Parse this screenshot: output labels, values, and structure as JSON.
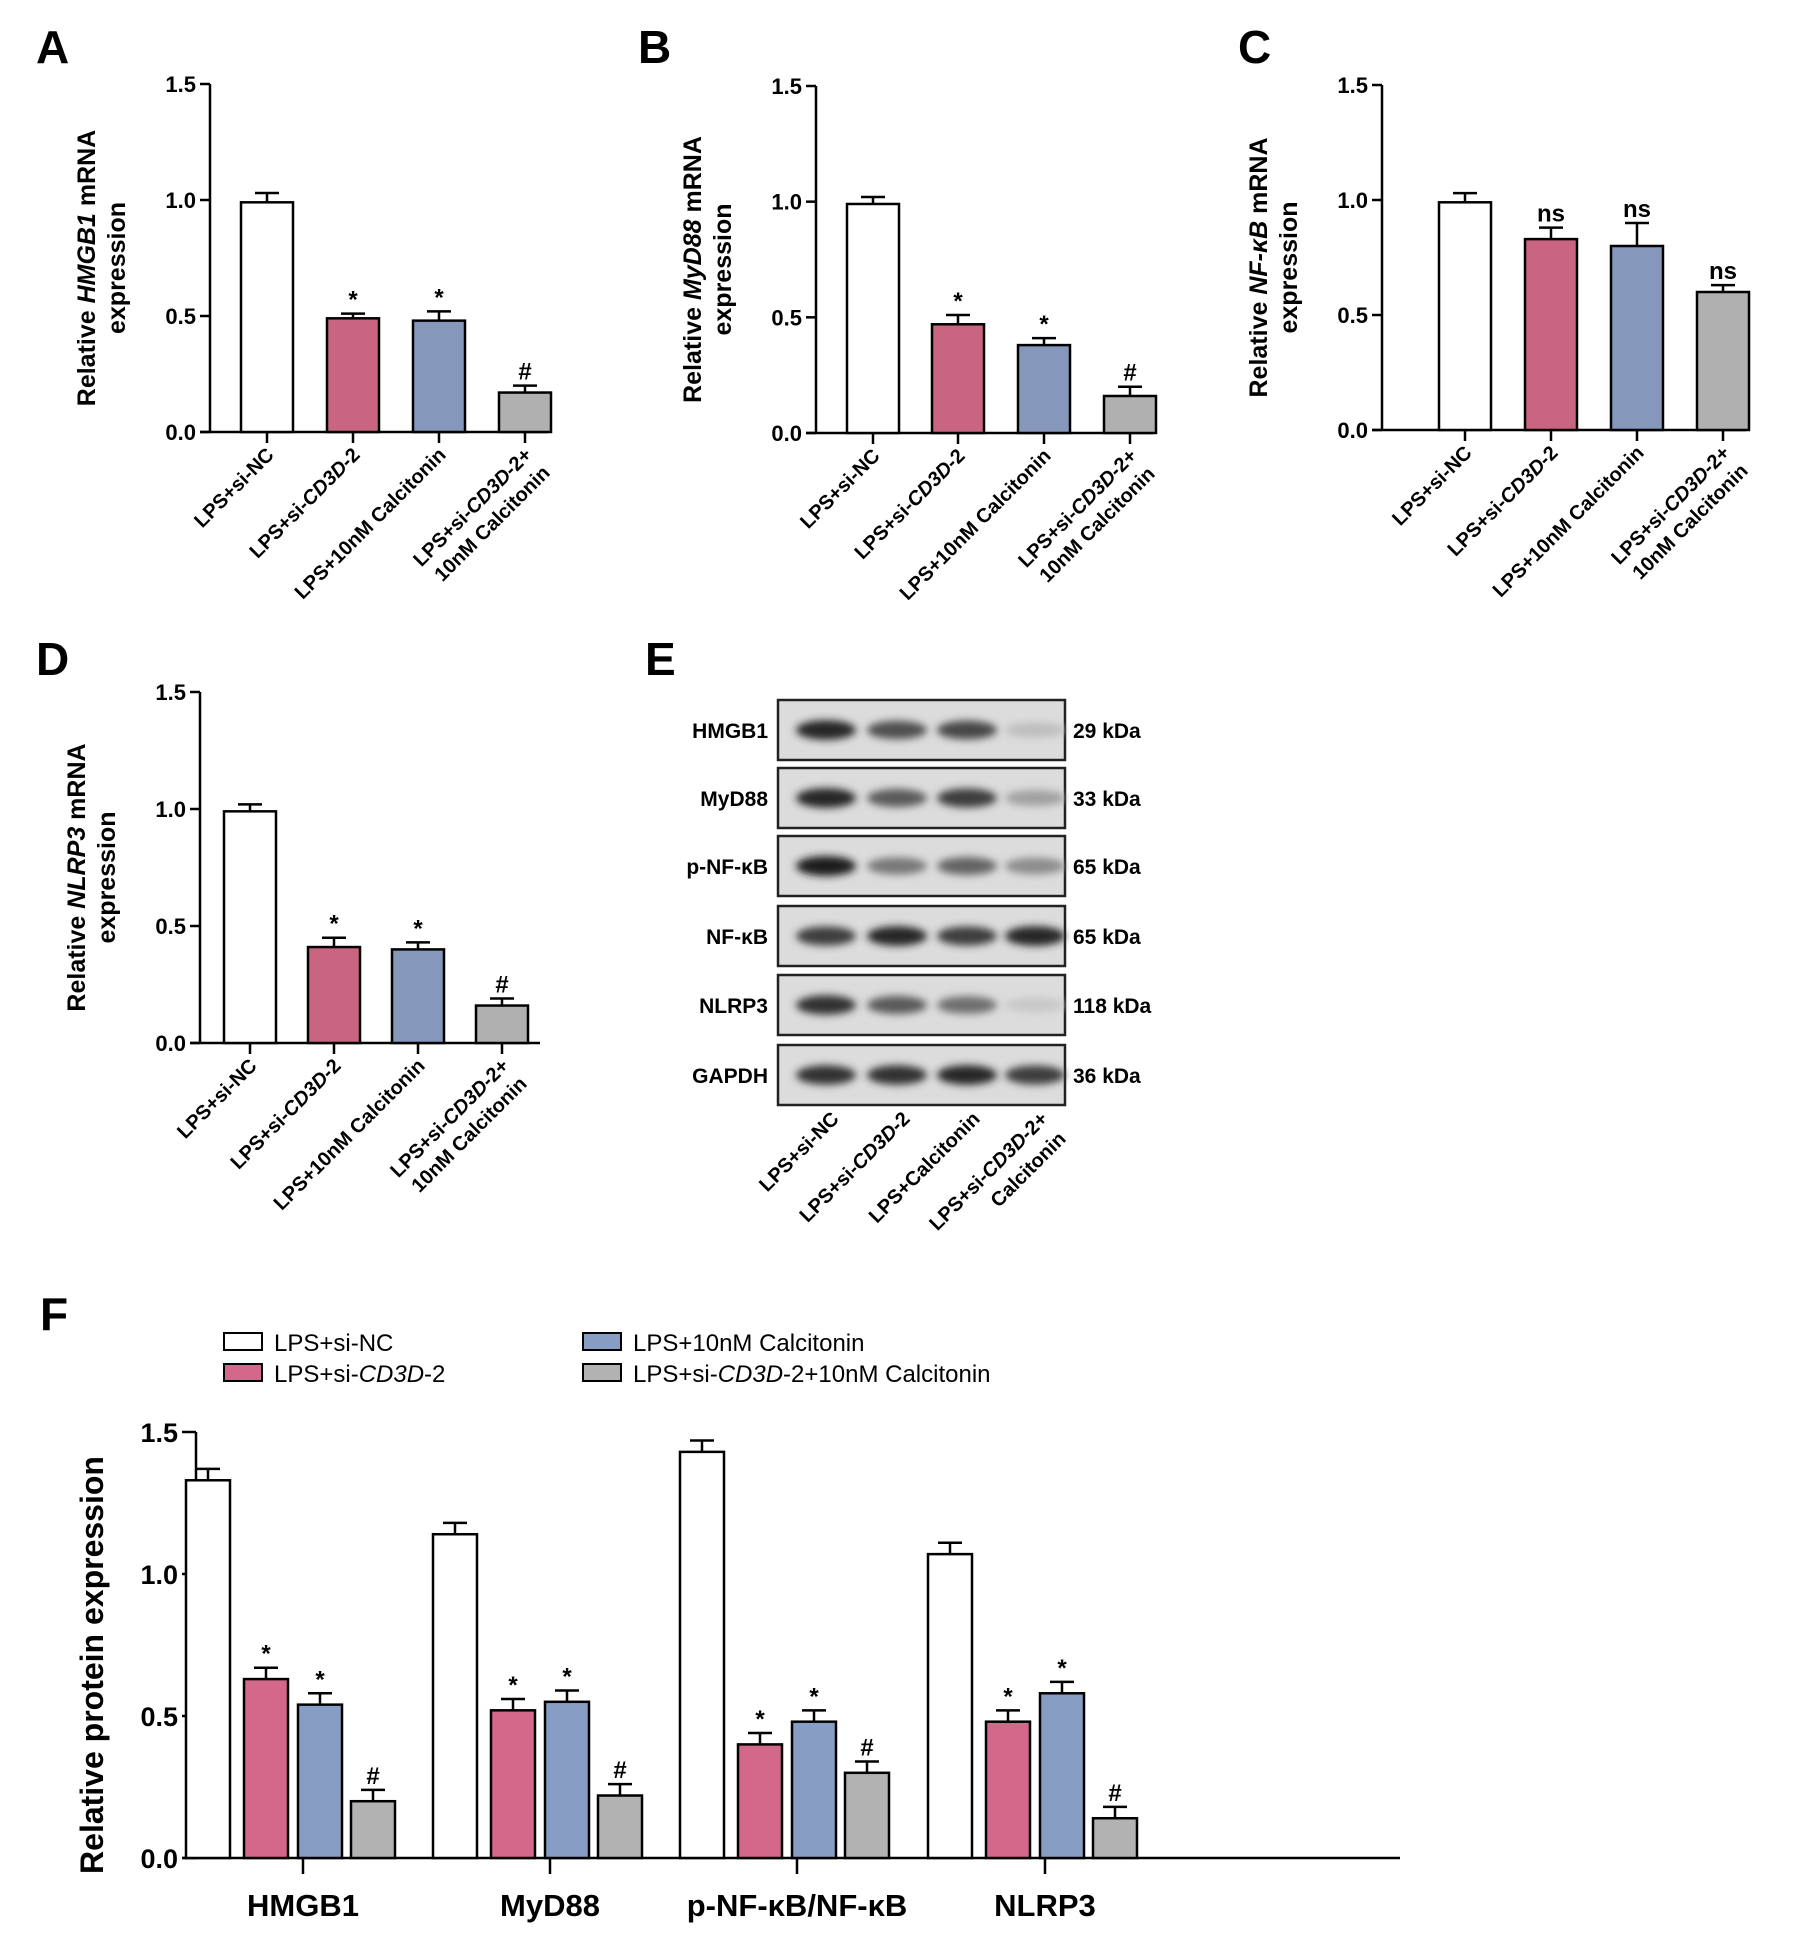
{
  "colors": {
    "LPS+si-NC": "#ffffff",
    "LPS+si-CD3D-2": "#c96580",
    "LPS+10nM Calcitonin": "#8598bb",
    "LPS+si-CD3D-2+10nM Calcitonin": "#b0b0b0"
  },
  "groups": [
    "LPS+si-NC",
    "LPS+si-CD3D-2",
    "LPS+10nM Calcitonin",
    "LPS+si-CD3D-2+10nM Calcitonin"
  ],
  "chart_data": [
    {
      "panel": "A",
      "type": "bar",
      "ylabel": "Relative HMGB1 mRNA expression",
      "ylabel_parts": [
        {
          "t": "Relative ",
          "i": false
        },
        {
          "t": "HMGB1",
          "i": true
        },
        {
          "t": " mRNA",
          "i": false
        }
      ],
      "ylabel_line2": "expression",
      "ylim": [
        0,
        1.5
      ],
      "yticks": [
        "0.0",
        "0.5",
        "1.0",
        "1.5"
      ],
      "categories": [
        [
          [
            {
              "t": "LPS+si-NC",
              "i": false
            }
          ]
        ],
        [
          [
            {
              "t": "LPS+si-",
              "i": false
            },
            {
              "t": "CD3D",
              "i": true
            },
            {
              "t": "-2",
              "i": false
            }
          ]
        ],
        [
          [
            {
              "t": "LPS+10nM Calcitonin",
              "i": false
            }
          ]
        ],
        [
          [
            {
              "t": "LPS+si-",
              "i": false
            },
            {
              "t": "CD3D",
              "i": true
            },
            {
              "t": "-2+",
              "i": false
            }
          ],
          [
            {
              "t": "10nM Calcitonin",
              "i": false
            }
          ]
        ]
      ],
      "values": [
        0.99,
        0.49,
        0.48,
        0.17
      ],
      "errors": [
        0.04,
        0.02,
        0.04,
        0.03
      ],
      "annotations": [
        "",
        "*",
        "*",
        "#"
      ]
    },
    {
      "panel": "B",
      "type": "bar",
      "ylabel": "Relative MyD88 mRNA expression",
      "ylabel_parts": [
        {
          "t": "Relative ",
          "i": false
        },
        {
          "t": "MyD88",
          "i": true
        },
        {
          "t": " mRNA",
          "i": false
        }
      ],
      "ylabel_line2": "expression",
      "ylim": [
        0,
        1.5
      ],
      "yticks": [
        "0.0",
        "0.5",
        "1.0",
        "1.5"
      ],
      "categories": [
        [
          [
            {
              "t": "LPS+si-NC",
              "i": false
            }
          ]
        ],
        [
          [
            {
              "t": "LPS+si-",
              "i": false
            },
            {
              "t": "CD3D",
              "i": true
            },
            {
              "t": "-2",
              "i": false
            }
          ]
        ],
        [
          [
            {
              "t": "LPS+10nM Calcitonin",
              "i": false
            }
          ]
        ],
        [
          [
            {
              "t": "LPS+si-",
              "i": false
            },
            {
              "t": "CD3D",
              "i": true
            },
            {
              "t": "-2+",
              "i": false
            }
          ],
          [
            {
              "t": "10nM Calcitonin",
              "i": false
            }
          ]
        ]
      ],
      "values": [
        0.99,
        0.47,
        0.38,
        0.16
      ],
      "errors": [
        0.03,
        0.04,
        0.03,
        0.04
      ],
      "annotations": [
        "",
        "*",
        "*",
        "#"
      ]
    },
    {
      "panel": "C",
      "type": "bar",
      "ylabel": "Relative NF-κB mRNA expression",
      "ylabel_parts": [
        {
          "t": "Relative ",
          "i": false
        },
        {
          "t": "NF-κB",
          "i": true
        },
        {
          "t": " mRNA",
          "i": false
        }
      ],
      "ylabel_line2": "expression",
      "ylim": [
        0,
        1.5
      ],
      "yticks": [
        "0.0",
        "0.5",
        "1.0",
        "1.5"
      ],
      "categories": [
        [
          [
            {
              "t": "LPS+si-NC",
              "i": false
            }
          ]
        ],
        [
          [
            {
              "t": "LPS+si-",
              "i": false
            },
            {
              "t": "CD3D",
              "i": true
            },
            {
              "t": "-2",
              "i": false
            }
          ]
        ],
        [
          [
            {
              "t": "LPS+10nM Calcitonin",
              "i": false
            }
          ]
        ],
        [
          [
            {
              "t": "LPS+si-",
              "i": false
            },
            {
              "t": "CD3D",
              "i": true
            },
            {
              "t": "-2+",
              "i": false
            }
          ],
          [
            {
              "t": "10nM Calcitonin",
              "i": false
            }
          ]
        ]
      ],
      "values": [
        0.99,
        0.83,
        0.8,
        0.6
      ],
      "errors": [
        0.04,
        0.05,
        0.1,
        0.03
      ],
      "annotations": [
        "",
        "ns",
        "ns",
        "ns"
      ]
    },
    {
      "panel": "D",
      "type": "bar",
      "ylabel": "Relative NLRP3 mRNA expression",
      "ylabel_parts": [
        {
          "t": "Relative ",
          "i": false
        },
        {
          "t": "NLRP3",
          "i": true
        },
        {
          "t": " mRNA",
          "i": false
        }
      ],
      "ylabel_line2": "expression",
      "ylim": [
        0,
        1.5
      ],
      "yticks": [
        "0.0",
        "0.5",
        "1.0",
        "1.5"
      ],
      "categories": [
        [
          [
            {
              "t": "LPS+si-NC",
              "i": false
            }
          ]
        ],
        [
          [
            {
              "t": "LPS+si-",
              "i": false
            },
            {
              "t": "CD3D",
              "i": true
            },
            {
              "t": "-2",
              "i": false
            }
          ]
        ],
        [
          [
            {
              "t": "LPS+10nM Calcitonin",
              "i": false
            }
          ]
        ],
        [
          [
            {
              "t": "LPS+si-",
              "i": false
            },
            {
              "t": "CD3D",
              "i": true
            },
            {
              "t": "-2+",
              "i": false
            }
          ],
          [
            {
              "t": "10nM Calcitonin",
              "i": false
            }
          ]
        ]
      ],
      "values": [
        0.99,
        0.41,
        0.4,
        0.16
      ],
      "errors": [
        0.03,
        0.04,
        0.03,
        0.03
      ],
      "annotations": [
        "",
        "*",
        "*",
        "#"
      ]
    },
    {
      "panel": "F",
      "type": "bar",
      "title": "",
      "ylabel": "Relative protein expression",
      "ylim": [
        0,
        1.5
      ],
      "yticks": [
        "0.0",
        "0.5",
        "1.0",
        "1.5"
      ],
      "categories": [
        "HMGB1",
        "MyD88",
        "p-NF-κB/NF-κB",
        "NLRP3"
      ],
      "legend_position": "top-left",
      "legend": [
        [
          {
            "t": "LPS+si-NC",
            "i": false
          }
        ],
        [
          {
            "t": "LPS+si-",
            "i": false
          },
          {
            "t": "CD3D",
            "i": true
          },
          {
            "t": "-2",
            "i": false
          }
        ],
        [
          {
            "t": "LPS+10nM Calcitonin",
            "i": false
          }
        ],
        [
          {
            "t": "LPS+si-",
            "i": false
          },
          {
            "t": "CD3D",
            "i": true
          },
          {
            "t": "-2+10nM Calcitonin",
            "i": false
          }
        ]
      ],
      "series": [
        {
          "name": "LPS+si-NC",
          "values": [
            1.33,
            1.14,
            1.43,
            1.07
          ],
          "errors": [
            0.04,
            0.04,
            0.04,
            0.04
          ],
          "annotations": [
            "",
            "",
            "",
            ""
          ]
        },
        {
          "name": "LPS+si-CD3D-2",
          "values": [
            0.63,
            0.52,
            0.4,
            0.48
          ],
          "errors": [
            0.04,
            0.04,
            0.04,
            0.04
          ],
          "annotations": [
            "*",
            "*",
            "*",
            "*"
          ]
        },
        {
          "name": "LPS+10nM Calcitonin",
          "values": [
            0.54,
            0.55,
            0.48,
            0.58
          ],
          "errors": [
            0.04,
            0.04,
            0.04,
            0.04
          ],
          "annotations": [
            "*",
            "*",
            "*",
            "*"
          ]
        },
        {
          "name": "LPS+si-CD3D-2+10nM Calcitonin",
          "values": [
            0.2,
            0.22,
            0.3,
            0.14
          ],
          "errors": [
            0.04,
            0.04,
            0.04,
            0.04
          ],
          "annotations": [
            "#",
            "#",
            "#",
            "#"
          ]
        }
      ]
    }
  ],
  "western_blot": {
    "panel": "E",
    "rows": [
      {
        "protein": "HMGB1",
        "size": "29 kDa",
        "intensities": [
          0.95,
          0.75,
          0.8,
          0.2
        ]
      },
      {
        "protein": "MyD88",
        "size": "33 kDa",
        "intensities": [
          0.95,
          0.7,
          0.85,
          0.35
        ]
      },
      {
        "protein": "p-NF-κB",
        "size": "65 kDa",
        "intensities": [
          1.0,
          0.55,
          0.65,
          0.45
        ]
      },
      {
        "protein": "NF-κB",
        "size": "65 kDa",
        "intensities": [
          0.85,
          0.95,
          0.85,
          0.95
        ]
      },
      {
        "protein": "NLRP3",
        "size": "118 kDa",
        "intensities": [
          0.9,
          0.7,
          0.6,
          0.15
        ]
      },
      {
        "protein": "GAPDH",
        "size": "36 kDa",
        "intensities": [
          0.9,
          0.9,
          0.95,
          0.85
        ]
      }
    ],
    "lanes": [
      [
        [
          {
            "t": "LPS+si-NC",
            "i": false
          }
        ]
      ],
      [
        [
          {
            "t": "LPS+si-",
            "i": false
          },
          {
            "t": "CD3D",
            "i": true
          },
          {
            "t": "-2",
            "i": false
          }
        ]
      ],
      [
        [
          {
            "t": "LPS+Calcitonin",
            "i": false
          }
        ]
      ],
      [
        [
          {
            "t": "LPS+si-",
            "i": false
          },
          {
            "t": "CD3D",
            "i": true
          },
          {
            "t": "-2+",
            "i": false
          }
        ],
        [
          {
            "t": "Calcitonin",
            "i": false
          }
        ]
      ]
    ]
  },
  "panel_letters": [
    "A",
    "B",
    "C",
    "D",
    "E",
    "F"
  ]
}
